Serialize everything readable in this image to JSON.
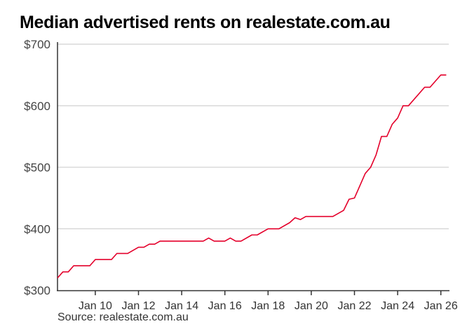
{
  "chart_data": {
    "type": "line",
    "title": "Median advertised rents on realestate.com.au",
    "source": "Source: realestate.com.au",
    "xlabel": "",
    "ylabel": "",
    "ylim": [
      300,
      700
    ],
    "xlim": [
      "2008-04",
      "2026-06"
    ],
    "grid": true,
    "line_color": "#e4002b",
    "y_ticks": [
      {
        "value": 300,
        "label": "$300"
      },
      {
        "value": 400,
        "label": "$400"
      },
      {
        "value": 500,
        "label": "$500"
      },
      {
        "value": 600,
        "label": "$600"
      },
      {
        "value": 700,
        "label": "$700"
      }
    ],
    "x_ticks": [
      {
        "date": "2010-01",
        "label": "Jan 10"
      },
      {
        "date": "2012-01",
        "label": "Jan 12"
      },
      {
        "date": "2014-01",
        "label": "Jan 14"
      },
      {
        "date": "2016-01",
        "label": "Jan 16"
      },
      {
        "date": "2018-01",
        "label": "Jan 18"
      },
      {
        "date": "2020-01",
        "label": "Jan 20"
      },
      {
        "date": "2022-01",
        "label": "Jan 22"
      },
      {
        "date": "2024-01",
        "label": "Jan 24"
      },
      {
        "date": "2026-01",
        "label": "Jan 26"
      }
    ],
    "series": [
      {
        "x": [
          "2008-04",
          "2008-07",
          "2008-10",
          "2009-01",
          "2009-10",
          "2010-01",
          "2010-10",
          "2011-01",
          "2011-07",
          "2012-01",
          "2012-04",
          "2012-07",
          "2012-10",
          "2013-01",
          "2015-01",
          "2015-04",
          "2015-07",
          "2016-01",
          "2016-04",
          "2016-07",
          "2016-10",
          "2017-04",
          "2017-07",
          "2018-01",
          "2018-07",
          "2019-01",
          "2019-04",
          "2019-07",
          "2019-10",
          "2021-01",
          "2021-07",
          "2021-10",
          "2022-01",
          "2022-07",
          "2022-10",
          "2023-01",
          "2023-04",
          "2023-07",
          "2023-10",
          "2024-01",
          "2024-04",
          "2024-07",
          "2025-04",
          "2025-07",
          "2026-01",
          "2026-04"
        ],
        "values": [
          320,
          330,
          330,
          340,
          340,
          350,
          350,
          360,
          360,
          370,
          370,
          375,
          375,
          380,
          380,
          385,
          380,
          380,
          385,
          380,
          380,
          390,
          390,
          400,
          400,
          410,
          418,
          415,
          420,
          420,
          430,
          448,
          450,
          490,
          500,
          520,
          550,
          550,
          570,
          580,
          600,
          600,
          630,
          630,
          650,
          650
        ]
      }
    ]
  }
}
